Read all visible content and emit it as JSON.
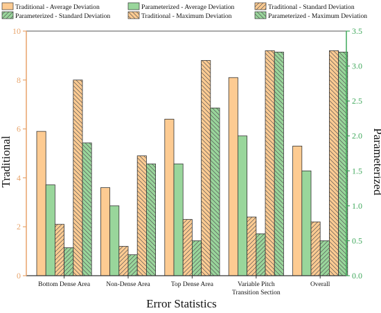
{
  "chart_data": {
    "type": "bar",
    "xlabel": "Error Statistics",
    "ylabel_left": "Traditional",
    "ylabel_right": "Parameterized",
    "ylim_left": [
      0,
      10
    ],
    "ylim_right": [
      0,
      3.5
    ],
    "yticks_left": [
      "0",
      "2",
      "4",
      "6",
      "8",
      "10"
    ],
    "yticks_right": [
      "0.0",
      "0.5",
      "1.0",
      "1.5",
      "2.0",
      "2.5",
      "3.0",
      "3.5"
    ],
    "categories": [
      [
        "Bottom Dense Area"
      ],
      [
        "Non-Dense Area"
      ],
      [
        "Top Dense Area"
      ],
      [
        "Variable Pitch",
        "Transition Section"
      ],
      [
        "Overall"
      ]
    ],
    "series": [
      {
        "name": "Traditional - Average Deviation",
        "axis": "left",
        "color": "#FDCB92",
        "pattern": "solid",
        "values": [
          5.9,
          3.6,
          6.4,
          8.1,
          5.3
        ]
      },
      {
        "name": "Parameterized - Average Deviation",
        "axis": "right",
        "color": "#99D69B",
        "pattern": "solid",
        "values": [
          1.3,
          1.0,
          1.6,
          2.0,
          1.5
        ]
      },
      {
        "name": "Traditional - Standard Deviation",
        "axis": "left",
        "color": "#FDCB92",
        "pattern": "hatch-right",
        "values": [
          2.1,
          1.2,
          2.3,
          2.4,
          2.2
        ]
      },
      {
        "name": "Parameterized - Standard Deviation",
        "axis": "right",
        "color": "#99D69B",
        "pattern": "hatch-right",
        "values": [
          0.4,
          0.3,
          0.5,
          0.6,
          0.5
        ]
      },
      {
        "name": "Traditional  - Maximum Deviation",
        "axis": "left",
        "color": "#FDCB92",
        "pattern": "hatch-left",
        "values": [
          8.0,
          4.9,
          8.8,
          9.2,
          9.2
        ]
      },
      {
        "name": "Parameterized - Maximum Deviation",
        "axis": "right",
        "color": "#99D69B",
        "pattern": "hatch-left",
        "values": [
          1.9,
          1.6,
          2.4,
          3.2,
          3.2
        ]
      }
    ],
    "legend_position": "top",
    "axis_colors": {
      "left": "#E8A46B",
      "right": "#3FA85B"
    },
    "grid": false
  }
}
